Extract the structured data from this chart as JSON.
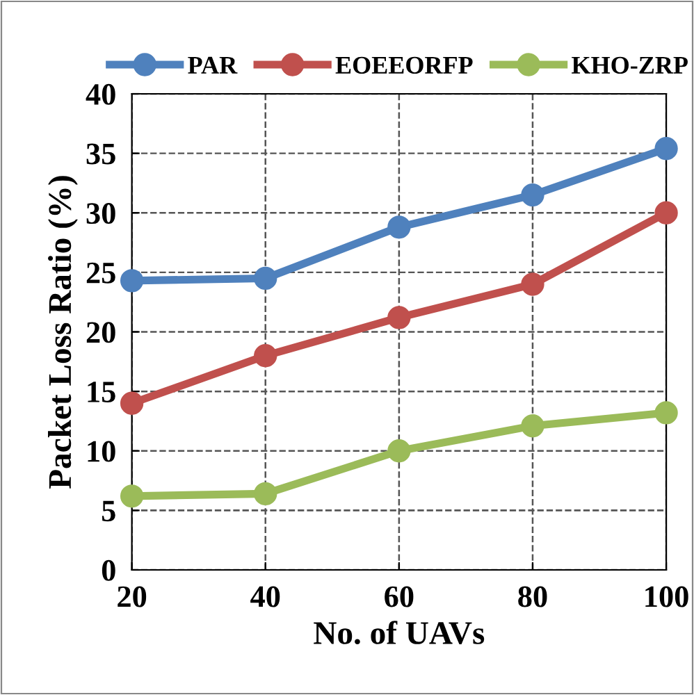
{
  "chart_data": {
    "type": "line",
    "xlabel": "No. of UAVs",
    "ylabel": "Packet Loss Ratio (%)",
    "x": [
      20,
      40,
      60,
      80,
      100
    ],
    "series": [
      {
        "name": "PAR",
        "color": "#4f81bd",
        "values": [
          24.3,
          24.5,
          28.8,
          31.5,
          35.4
        ]
      },
      {
        "name": "EOEEORFP",
        "color": "#c0504d",
        "values": [
          14.0,
          18.0,
          21.2,
          24.0,
          30.0
        ]
      },
      {
        "name": "KHO-ZRP",
        "color": "#9bbb59",
        "values": [
          6.2,
          6.4,
          10.0,
          12.1,
          13.2
        ]
      }
    ],
    "xlim": [
      20,
      100
    ],
    "xticks": [
      20,
      40,
      60,
      80,
      100
    ],
    "ylim": [
      0,
      40
    ],
    "yticks": [
      0,
      5,
      10,
      15,
      20,
      25,
      30,
      35,
      40
    ],
    "grid": true,
    "legend": "top",
    "marker": "circle",
    "line_style": "solid"
  }
}
